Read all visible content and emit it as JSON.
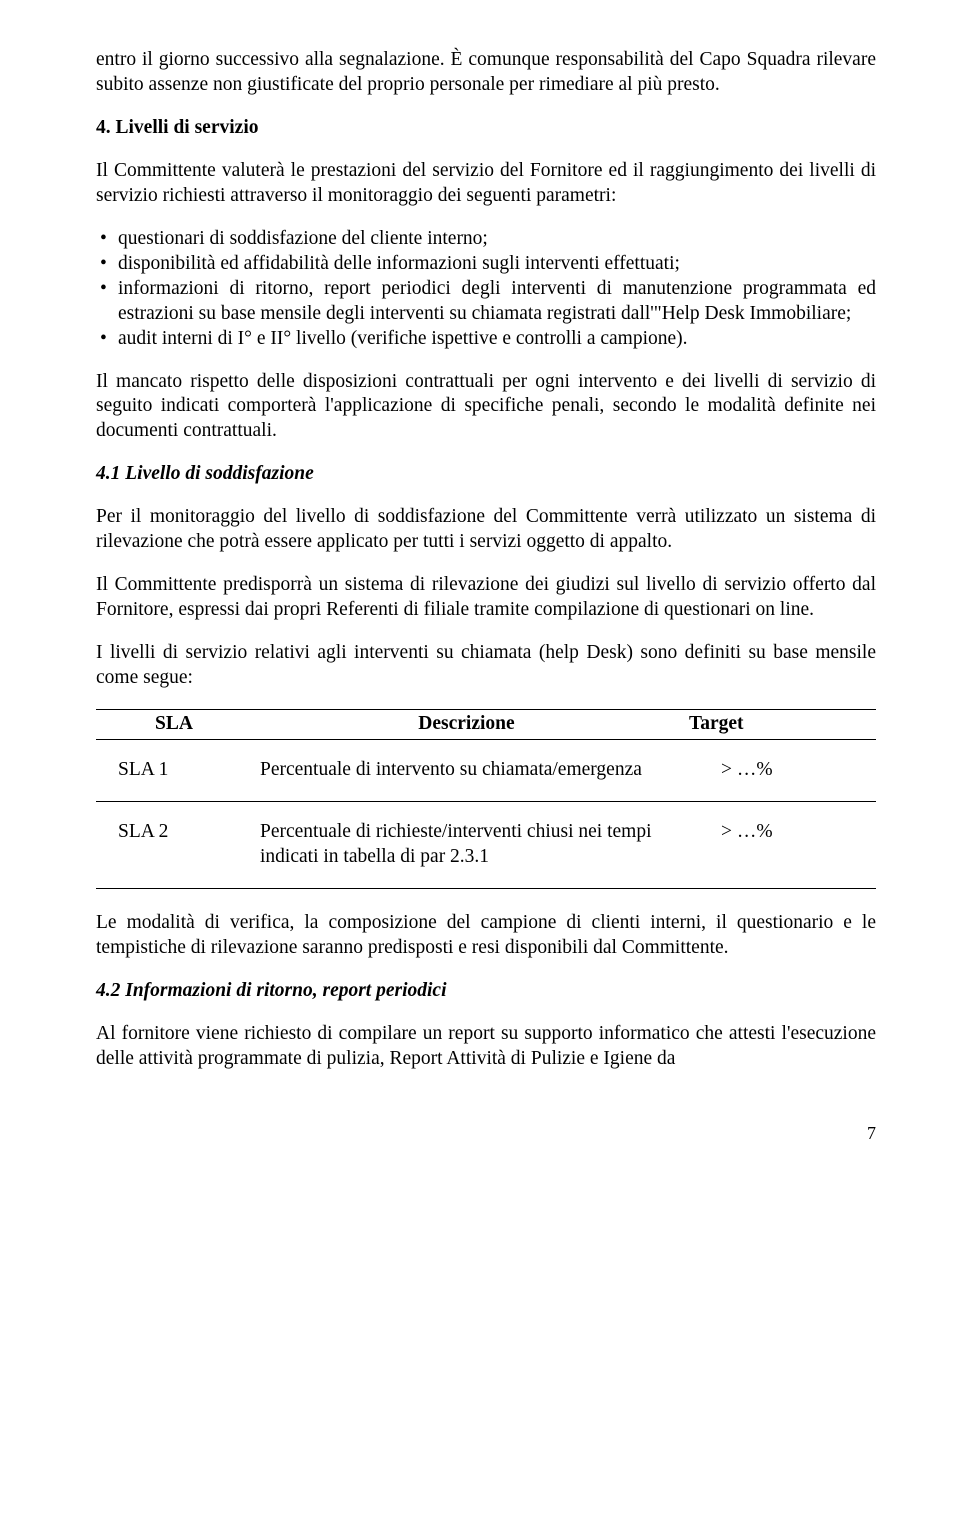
{
  "para_intro": "entro il giorno successivo alla segnalazione. È comunque responsabilità del Capo Squadra rilevare subito assenze non giustificate del proprio personale per rimediare al più presto.",
  "heading_4": "4. Livelli di servizio",
  "para_4a": "Il Committente valuterà le prestazioni del servizio del Fornitore ed il raggiungimento dei livelli di servizio richiesti attraverso il monitoraggio dei seguenti parametri:",
  "bullets": {
    "b1": "questionari di soddisfazione del cliente interno;",
    "b2": "disponibilità ed affidabilità delle informazioni sugli interventi effettuati;",
    "b3": "informazioni di ritorno, report periodici degli interventi di manutenzione programmata ed estrazioni su base mensile degli interventi su chiamata registrati dall'\"Help Desk Immobiliare;",
    "b4": "audit interni di I° e II° livello (verifiche ispettive e controlli a campione)."
  },
  "para_4b": "Il mancato rispetto delle disposizioni contrattuali per ogni intervento e dei livelli di servizio di seguito indicati comporterà l'applicazione di specifiche penali, secondo le modalità definite nei documenti contrattuali.",
  "heading_41": "4.1   Livello di soddisfazione",
  "para_41a": "Per il monitoraggio del livello di soddisfazione del Committente verrà utilizzato un sistema di rilevazione che potrà essere applicato per tutti i servizi oggetto di appalto.",
  "para_41b": "Il Committente predisporrà un sistema di rilevazione dei giudizi sul livello di servizio offerto dal Fornitore, espressi dai propri Referenti di filiale tramite compilazione di questionari on line.",
  "para_41c": "I livelli di servizio relativi agli interventi su chiamata (help Desk) sono definiti su base mensile come segue:",
  "table": {
    "headers": {
      "h1": "SLA",
      "h2": "Descrizione",
      "h3": "Target"
    },
    "rows": [
      {
        "c1": "SLA 1",
        "c2": "Percentuale di intervento su chiamata/emergenza",
        "c3": "> …%"
      },
      {
        "c1": "SLA 2",
        "c2": "Percentuale di richieste/interventi chiusi nei tempi indicati in tabella di par 2.3.1",
        "c3": "> …%"
      }
    ]
  },
  "para_41d": "Le modalità di verifica, la composizione del campione di clienti interni, il questionario e le tempistiche di rilevazione saranno predisposti e resi disponibili dal Committente.",
  "heading_42": "4.2   Informazioni di ritorno, report periodici",
  "para_42a": "Al fornitore viene richiesto di compilare un report su supporto informatico che attesti l'esecuzione delle attività programmate di pulizia, Report Attività di Pulizie e Igiene da",
  "page_number": "7"
}
